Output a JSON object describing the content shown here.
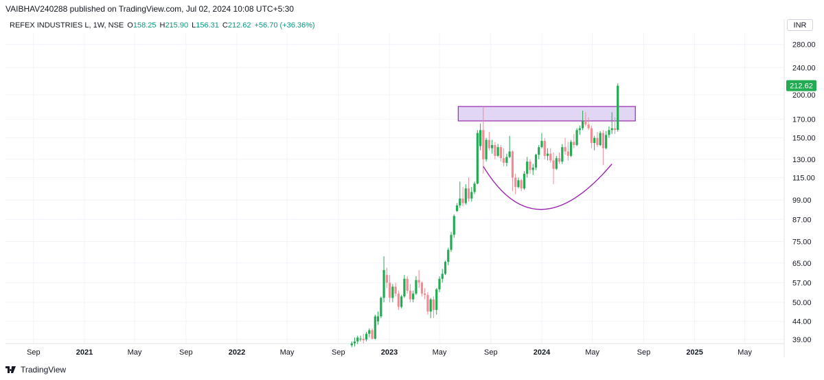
{
  "header": {
    "publisher_line": "VAIBHAV240288 published on TradingView.com, Jul 02, 2024 10:08 UTC+5:30"
  },
  "legend": {
    "symbol": "REFEX INDUSTRIES L, 1W, NSE",
    "open_label": "O",
    "open": "158.25",
    "high_label": "H",
    "high": "215.90",
    "low_label": "L",
    "low": "156.31",
    "close_label": "C",
    "close": "212.62",
    "change": "+56.70 (+36.36%)"
  },
  "currency_button": "INR",
  "footer": {
    "brand": "TradingView"
  },
  "colors": {
    "up": "#22ab52",
    "down": "#f28b93",
    "zone_fill": "#dccff2",
    "zone_border": "#9b27b0",
    "arc": "#9b27b0",
    "last_price_bg": "#22ab52"
  },
  "chart_data": {
    "type": "candlestick",
    "interval": "1W",
    "scale": "log",
    "y_ticks": [
      39.0,
      44.0,
      50.0,
      57.0,
      65.0,
      75.0,
      87.0,
      99.0,
      115.0,
      130.0,
      150.0,
      170.0,
      200.0,
      240.0,
      280.0
    ],
    "y_tick_labels": [
      "39.00",
      "44.00",
      "50.00",
      "57.00",
      "65.00",
      "75.00",
      "87.00",
      "99.00",
      "115.00",
      "130.00",
      "150.00",
      "170.00",
      "200.00",
      "240.00",
      "280.00"
    ],
    "x_labels": [
      {
        "label": "Sep",
        "date": "2020-09-01"
      },
      {
        "label": "2021",
        "date": "2021-01-01"
      },
      {
        "label": "May",
        "date": "2021-05-01"
      },
      {
        "label": "Sep",
        "date": "2021-09-01"
      },
      {
        "label": "2022",
        "date": "2022-01-01"
      },
      {
        "label": "May",
        "date": "2022-05-01"
      },
      {
        "label": "Sep",
        "date": "2022-09-01"
      },
      {
        "label": "2023",
        "date": "2023-01-01"
      },
      {
        "label": "May",
        "date": "2023-05-01"
      },
      {
        "label": "Sep",
        "date": "2023-09-01"
      },
      {
        "label": "2024",
        "date": "2024-01-01"
      },
      {
        "label": "May",
        "date": "2024-05-01"
      },
      {
        "label": "Sep",
        "date": "2024-09-01"
      },
      {
        "label": "2025",
        "date": "2025-01-01"
      },
      {
        "label": "May",
        "date": "2025-05-01"
      }
    ],
    "last_price": "212.62",
    "resistance_zone": {
      "low": 168,
      "high": 185,
      "start": "2023-07-31",
      "end": "2024-08-12"
    },
    "cup_arc": {
      "start": {
        "date": "2023-08-14",
        "price": 124
      },
      "bottom": {
        "date": "2024-01-01",
        "price": 93
      },
      "end": {
        "date": "2024-06-17",
        "price": 126
      }
    },
    "candles": [
      {
        "date": "2022-10-03",
        "o": 37.5,
        "h": 38.5,
        "l": 37.0,
        "c": 38.0
      },
      {
        "date": "2022-10-10",
        "o": 38.0,
        "h": 39.5,
        "l": 37.2,
        "c": 38.5
      },
      {
        "date": "2022-10-17",
        "o": 38.5,
        "h": 40.0,
        "l": 37.8,
        "c": 39.5
      },
      {
        "date": "2022-10-24",
        "o": 39.0,
        "h": 40.0,
        "l": 38.5,
        "c": 39.2
      },
      {
        "date": "2022-10-31",
        "o": 39.2,
        "h": 40.5,
        "l": 38.0,
        "c": 38.8
      },
      {
        "date": "2022-11-07",
        "o": 39.0,
        "h": 41.0,
        "l": 38.5,
        "c": 40.5
      },
      {
        "date": "2022-11-14",
        "o": 40.5,
        "h": 42.0,
        "l": 39.5,
        "c": 41.5
      },
      {
        "date": "2022-11-21",
        "o": 41.5,
        "h": 42.0,
        "l": 39.0,
        "c": 39.2
      },
      {
        "date": "2022-11-28",
        "o": 39.2,
        "h": 46.0,
        "l": 39.0,
        "c": 45.5
      },
      {
        "date": "2022-12-05",
        "o": 44.0,
        "h": 47.0,
        "l": 43.0,
        "c": 45.5
      },
      {
        "date": "2022-12-12",
        "o": 45.5,
        "h": 52.0,
        "l": 45.0,
        "c": 51.5
      },
      {
        "date": "2022-12-19",
        "o": 51.5,
        "h": 68.0,
        "l": 50.0,
        "c": 62.0
      },
      {
        "date": "2022-12-26",
        "o": 60.0,
        "h": 63.0,
        "l": 55.0,
        "c": 57.0
      },
      {
        "date": "2023-01-02",
        "o": 57.0,
        "h": 60.0,
        "l": 50.0,
        "c": 51.5
      },
      {
        "date": "2023-01-09",
        "o": 51.5,
        "h": 56.5,
        "l": 50.0,
        "c": 55.5
      },
      {
        "date": "2023-01-16",
        "o": 55.5,
        "h": 57.0,
        "l": 52.0,
        "c": 53.0
      },
      {
        "date": "2023-01-23",
        "o": 53.0,
        "h": 54.0,
        "l": 47.5,
        "c": 48.5
      },
      {
        "date": "2023-01-30",
        "o": 48.5,
        "h": 52.5,
        "l": 48.0,
        "c": 52.0
      },
      {
        "date": "2023-02-06",
        "o": 52.0,
        "h": 60.0,
        "l": 51.5,
        "c": 58.5
      },
      {
        "date": "2023-02-13",
        "o": 58.5,
        "h": 59.5,
        "l": 53.0,
        "c": 54.0
      },
      {
        "date": "2023-02-20",
        "o": 54.0,
        "h": 56.5,
        "l": 50.0,
        "c": 51.0
      },
      {
        "date": "2023-02-27",
        "o": 51.0,
        "h": 54.0,
        "l": 50.0,
        "c": 53.0
      },
      {
        "date": "2023-03-06",
        "o": 53.0,
        "h": 59.5,
        "l": 52.5,
        "c": 58.0
      },
      {
        "date": "2023-03-13",
        "o": 58.0,
        "h": 62.0,
        "l": 55.0,
        "c": 57.0
      },
      {
        "date": "2023-03-20",
        "o": 57.0,
        "h": 57.5,
        "l": 52.0,
        "c": 53.0
      },
      {
        "date": "2023-03-27",
        "o": 53.0,
        "h": 55.0,
        "l": 51.0,
        "c": 52.5
      },
      {
        "date": "2023-04-03",
        "o": 52.5,
        "h": 53.5,
        "l": 46.0,
        "c": 47.0
      },
      {
        "date": "2023-04-10",
        "o": 47.0,
        "h": 51.5,
        "l": 45.0,
        "c": 51.0
      },
      {
        "date": "2023-04-17",
        "o": 51.0,
        "h": 52.0,
        "l": 45.0,
        "c": 47.5
      },
      {
        "date": "2023-04-24",
        "o": 47.5,
        "h": 55.0,
        "l": 46.0,
        "c": 54.5
      },
      {
        "date": "2023-05-01",
        "o": 54.5,
        "h": 59.5,
        "l": 53.5,
        "c": 58.5
      },
      {
        "date": "2023-05-08",
        "o": 58.5,
        "h": 62.5,
        "l": 57.0,
        "c": 60.5
      },
      {
        "date": "2023-05-15",
        "o": 60.5,
        "h": 66.0,
        "l": 60.0,
        "c": 65.5
      },
      {
        "date": "2023-05-22",
        "o": 65.5,
        "h": 72.0,
        "l": 64.0,
        "c": 71.0
      },
      {
        "date": "2023-05-29",
        "o": 71.0,
        "h": 80.0,
        "l": 70.0,
        "c": 78.5
      },
      {
        "date": "2023-06-05",
        "o": 78.5,
        "h": 90.0,
        "l": 77.0,
        "c": 89.0
      },
      {
        "date": "2023-06-12",
        "o": 92.0,
        "h": 97.0,
        "l": 91.5,
        "c": 95.5
      },
      {
        "date": "2023-06-19",
        "o": 95.5,
        "h": 112.0,
        "l": 94.0,
        "c": 100.0
      },
      {
        "date": "2023-06-26",
        "o": 100.0,
        "h": 108.0,
        "l": 95.0,
        "c": 97.0
      },
      {
        "date": "2023-07-03",
        "o": 97.0,
        "h": 110.0,
        "l": 96.0,
        "c": 107.0
      },
      {
        "date": "2023-07-10",
        "o": 107.0,
        "h": 115.0,
        "l": 98.0,
        "c": 100.0
      },
      {
        "date": "2023-07-17",
        "o": 100.0,
        "h": 108.0,
        "l": 98.0,
        "c": 104.5
      },
      {
        "date": "2023-07-24",
        "o": 104.5,
        "h": 112.0,
        "l": 103.0,
        "c": 110.5
      },
      {
        "date": "2023-07-31",
        "o": 110.5,
        "h": 158.0,
        "l": 110.0,
        "c": 155.0
      },
      {
        "date": "2023-08-07",
        "o": 142.0,
        "h": 165.0,
        "l": 138.0,
        "c": 158.0
      },
      {
        "date": "2023-08-14",
        "o": 158.0,
        "h": 185.0,
        "l": 118.0,
        "c": 130.0
      },
      {
        "date": "2023-08-21",
        "o": 130.0,
        "h": 150.0,
        "l": 128.0,
        "c": 148.0
      },
      {
        "date": "2023-08-28",
        "o": 148.0,
        "h": 156.0,
        "l": 138.0,
        "c": 140.0
      },
      {
        "date": "2023-09-04",
        "o": 140.0,
        "h": 148.0,
        "l": 135.0,
        "c": 143.0
      },
      {
        "date": "2023-09-11",
        "o": 143.0,
        "h": 146.0,
        "l": 130.0,
        "c": 133.0
      },
      {
        "date": "2023-09-18",
        "o": 133.0,
        "h": 144.0,
        "l": 132.0,
        "c": 141.0
      },
      {
        "date": "2023-09-25",
        "o": 141.0,
        "h": 143.0,
        "l": 128.0,
        "c": 131.0
      },
      {
        "date": "2023-10-02",
        "o": 131.0,
        "h": 140.0,
        "l": 124.0,
        "c": 127.0
      },
      {
        "date": "2023-10-09",
        "o": 127.0,
        "h": 135.0,
        "l": 124.0,
        "c": 132.0
      },
      {
        "date": "2023-10-16",
        "o": 132.0,
        "h": 152.0,
        "l": 131.0,
        "c": 137.0
      },
      {
        "date": "2023-10-23",
        "o": 137.0,
        "h": 138.0,
        "l": 105.0,
        "c": 115.0
      },
      {
        "date": "2023-10-30",
        "o": 115.0,
        "h": 118.0,
        "l": 103.0,
        "c": 108.0
      },
      {
        "date": "2023-11-06",
        "o": 108.0,
        "h": 115.0,
        "l": 107.0,
        "c": 113.0
      },
      {
        "date": "2023-11-13",
        "o": 113.0,
        "h": 114.0,
        "l": 105.0,
        "c": 107.0
      },
      {
        "date": "2023-11-20",
        "o": 107.0,
        "h": 120.0,
        "l": 106.0,
        "c": 118.0
      },
      {
        "date": "2023-11-27",
        "o": 118.0,
        "h": 132.0,
        "l": 115.0,
        "c": 128.0
      },
      {
        "date": "2023-12-04",
        "o": 128.0,
        "h": 130.0,
        "l": 118.0,
        "c": 121.0
      },
      {
        "date": "2023-12-11",
        "o": 121.0,
        "h": 126.0,
        "l": 117.0,
        "c": 123.0
      },
      {
        "date": "2023-12-18",
        "o": 123.0,
        "h": 135.0,
        "l": 121.0,
        "c": 134.0
      },
      {
        "date": "2023-12-25",
        "o": 134.0,
        "h": 143.0,
        "l": 130.0,
        "c": 141.0
      },
      {
        "date": "2024-01-01",
        "o": 141.0,
        "h": 155.0,
        "l": 140.0,
        "c": 147.0
      },
      {
        "date": "2024-01-08",
        "o": 147.0,
        "h": 150.0,
        "l": 130.0,
        "c": 133.0
      },
      {
        "date": "2024-01-15",
        "o": 133.0,
        "h": 140.0,
        "l": 129.0,
        "c": 135.0
      },
      {
        "date": "2024-01-22",
        "o": 135.0,
        "h": 140.0,
        "l": 127.0,
        "c": 129.0
      },
      {
        "date": "2024-01-29",
        "o": 129.0,
        "h": 136.0,
        "l": 110.0,
        "c": 122.0
      },
      {
        "date": "2024-02-05",
        "o": 122.0,
        "h": 133.0,
        "l": 121.0,
        "c": 131.0
      },
      {
        "date": "2024-02-12",
        "o": 131.0,
        "h": 136.0,
        "l": 126.0,
        "c": 128.0
      },
      {
        "date": "2024-02-19",
        "o": 128.0,
        "h": 144.0,
        "l": 126.0,
        "c": 141.0
      },
      {
        "date": "2024-02-26",
        "o": 141.0,
        "h": 150.0,
        "l": 134.0,
        "c": 137.0
      },
      {
        "date": "2024-03-04",
        "o": 137.0,
        "h": 146.0,
        "l": 129.0,
        "c": 133.0
      },
      {
        "date": "2024-03-11",
        "o": 133.0,
        "h": 148.0,
        "l": 132.0,
        "c": 146.0
      },
      {
        "date": "2024-03-18",
        "o": 146.0,
        "h": 154.0,
        "l": 140.0,
        "c": 143.0
      },
      {
        "date": "2024-03-25",
        "o": 143.0,
        "h": 160.0,
        "l": 142.0,
        "c": 158.0
      },
      {
        "date": "2024-04-01",
        "o": 158.0,
        "h": 163.0,
        "l": 153.0,
        "c": 160.0
      },
      {
        "date": "2024-04-08",
        "o": 160.0,
        "h": 180.0,
        "l": 158.0,
        "c": 168.0
      },
      {
        "date": "2024-04-15",
        "o": 168.0,
        "h": 178.0,
        "l": 162.0,
        "c": 164.0
      },
      {
        "date": "2024-04-22",
        "o": 164.0,
        "h": 172.0,
        "l": 158.0,
        "c": 160.0
      },
      {
        "date": "2024-04-29",
        "o": 160.0,
        "h": 163.0,
        "l": 140.0,
        "c": 145.0
      },
      {
        "date": "2024-05-06",
        "o": 145.0,
        "h": 152.0,
        "l": 138.0,
        "c": 150.0
      },
      {
        "date": "2024-05-13",
        "o": 150.0,
        "h": 156.0,
        "l": 141.0,
        "c": 143.0
      },
      {
        "date": "2024-05-20",
        "o": 143.0,
        "h": 157.0,
        "l": 142.0,
        "c": 155.0
      },
      {
        "date": "2024-05-27",
        "o": 155.0,
        "h": 158.0,
        "l": 125.0,
        "c": 140.0
      },
      {
        "date": "2024-06-03",
        "o": 140.0,
        "h": 157.0,
        "l": 139.0,
        "c": 153.0
      },
      {
        "date": "2024-06-10",
        "o": 153.0,
        "h": 162.0,
        "l": 150.0,
        "c": 158.0
      },
      {
        "date": "2024-06-17",
        "o": 158.0,
        "h": 178.0,
        "l": 154.0,
        "c": 160.0
      },
      {
        "date": "2024-06-24",
        "o": 160.0,
        "h": 172.0,
        "l": 154.0,
        "c": 158.25
      },
      {
        "date": "2024-07-01",
        "o": 158.25,
        "h": 215.9,
        "l": 156.31,
        "c": 212.62
      }
    ]
  }
}
